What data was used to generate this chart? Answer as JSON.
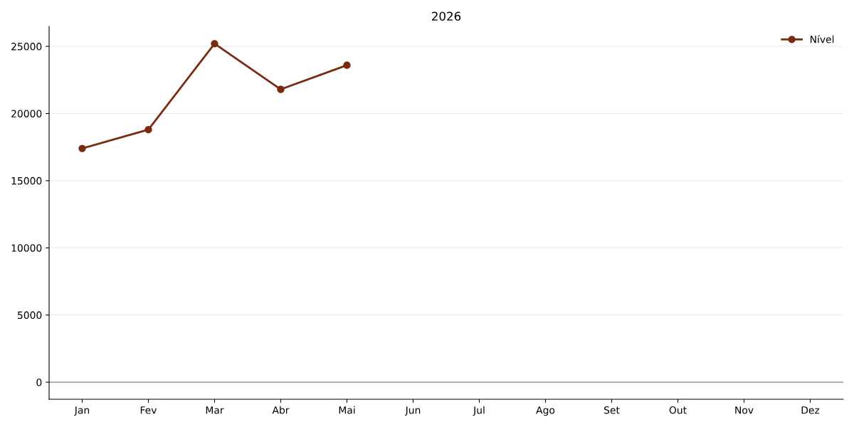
{
  "chart_data": {
    "type": "line",
    "title": "2026",
    "categories": [
      "Jan",
      "Fev",
      "Mar",
      "Abr",
      "Mai",
      "Jun",
      "Jul",
      "Ago",
      "Set",
      "Out",
      "Nov",
      "Dez"
    ],
    "series": [
      {
        "name": "Nível",
        "color": "#7b2a10",
        "values": [
          17400,
          18800,
          25200,
          21800,
          23600,
          null,
          null,
          null,
          null,
          null,
          null,
          null
        ]
      }
    ],
    "ylim": [
      -1270,
      26480
    ],
    "yticks": [
      0,
      5000,
      10000,
      15000,
      20000,
      25000
    ],
    "ref_lines": [
      {
        "axis": "y",
        "value": 0,
        "color": "#999999"
      }
    ],
    "grid": "y",
    "legend": "top right",
    "marker": "circle",
    "line_style": "solid"
  }
}
